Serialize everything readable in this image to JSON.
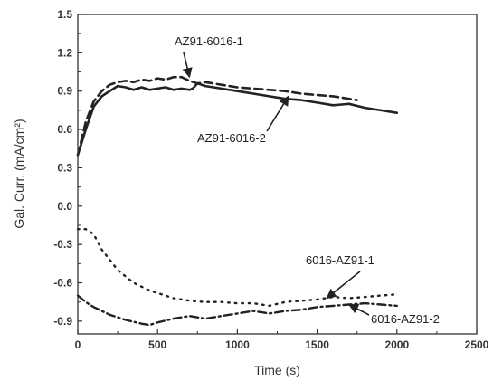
{
  "chart_data": {
    "type": "line",
    "xlabel": "Time (s)",
    "ylabel": "Gal. Curr. (mA/cm²)",
    "xlim": [
      0,
      2500
    ],
    "ylim": [
      -1.0,
      1.5
    ],
    "xticks": [
      0,
      500,
      1000,
      1500,
      2000,
      2500
    ],
    "yticks": [
      -0.9,
      -0.6,
      -0.3,
      0.0,
      0.3,
      0.6,
      0.9,
      1.2,
      1.5
    ],
    "ytick_labels": [
      "-0.9",
      "-0.6",
      "-0.3",
      "0.0",
      "0.3",
      "0.6",
      "0.9",
      "1.2",
      "1.5"
    ],
    "grid": false,
    "legend": "none",
    "series": [
      {
        "name": "AZ91-6016-1",
        "line_style": "dashed",
        "x": [
          0,
          50,
          100,
          150,
          200,
          250,
          300,
          350,
          400,
          450,
          500,
          550,
          600,
          650,
          700,
          750,
          800,
          900,
          1000,
          1100,
          1200,
          1300,
          1400,
          1500,
          1600,
          1700,
          1750
        ],
        "y": [
          0.4,
          0.66,
          0.82,
          0.9,
          0.95,
          0.97,
          0.98,
          0.97,
          0.99,
          0.98,
          1.0,
          0.99,
          1.01,
          1.01,
          0.98,
          0.96,
          0.97,
          0.95,
          0.93,
          0.92,
          0.91,
          0.9,
          0.88,
          0.87,
          0.86,
          0.84,
          0.83
        ]
      },
      {
        "name": "AZ91-6016-2",
        "line_style": "solid",
        "x": [
          0,
          50,
          100,
          150,
          200,
          250,
          300,
          350,
          400,
          450,
          500,
          550,
          600,
          650,
          700,
          720,
          750,
          800,
          900,
          1000,
          1100,
          1200,
          1300,
          1400,
          1500,
          1600,
          1700,
          1800,
          1900,
          2000
        ],
        "y": [
          0.4,
          0.6,
          0.78,
          0.86,
          0.9,
          0.94,
          0.93,
          0.91,
          0.93,
          0.91,
          0.92,
          0.93,
          0.91,
          0.92,
          0.91,
          0.92,
          0.96,
          0.94,
          0.92,
          0.9,
          0.88,
          0.86,
          0.84,
          0.83,
          0.81,
          0.79,
          0.8,
          0.77,
          0.75,
          0.73
        ]
      },
      {
        "name": "6016-AZ91-1",
        "line_style": "dotted",
        "x": [
          0,
          50,
          100,
          150,
          200,
          250,
          300,
          350,
          400,
          450,
          500,
          600,
          700,
          800,
          900,
          1000,
          1100,
          1200,
          1300,
          1400,
          1500,
          1600,
          1700,
          1800,
          1900,
          2000
        ],
        "y": [
          -0.18,
          -0.18,
          -0.22,
          -0.34,
          -0.42,
          -0.5,
          -0.55,
          -0.6,
          -0.63,
          -0.66,
          -0.68,
          -0.72,
          -0.74,
          -0.75,
          -0.75,
          -0.76,
          -0.76,
          -0.78,
          -0.75,
          -0.74,
          -0.73,
          -0.71,
          -0.72,
          -0.71,
          -0.7,
          -0.69
        ]
      },
      {
        "name": "6016-AZ91-2",
        "line_style": "dash-dot",
        "x": [
          0,
          50,
          100,
          200,
          300,
          400,
          450,
          500,
          600,
          700,
          800,
          900,
          1000,
          1100,
          1200,
          1300,
          1400,
          1500,
          1600,
          1700,
          1800,
          1900,
          2000
        ],
        "y": [
          -0.7,
          -0.75,
          -0.79,
          -0.85,
          -0.89,
          -0.92,
          -0.93,
          -0.91,
          -0.88,
          -0.86,
          -0.88,
          -0.86,
          -0.84,
          -0.82,
          -0.84,
          -0.82,
          -0.81,
          -0.79,
          -0.78,
          -0.77,
          -0.76,
          -0.77,
          -0.78
        ]
      }
    ],
    "annotations": [
      {
        "text": "AZ91-6016-1",
        "target_series": "AZ91-6016-1",
        "target": [
          700,
          1.01
        ]
      },
      {
        "text": "AZ91-6016-2",
        "target_series": "AZ91-6016-2",
        "target": [
          1320,
          0.86
        ]
      },
      {
        "text": "6016-AZ91-1",
        "target_series": "6016-AZ91-1",
        "target": [
          1560,
          -0.72
        ]
      },
      {
        "text": "6016-AZ91-2",
        "target_series": "6016-AZ91-2",
        "target": [
          1700,
          -0.77
        ]
      }
    ]
  }
}
